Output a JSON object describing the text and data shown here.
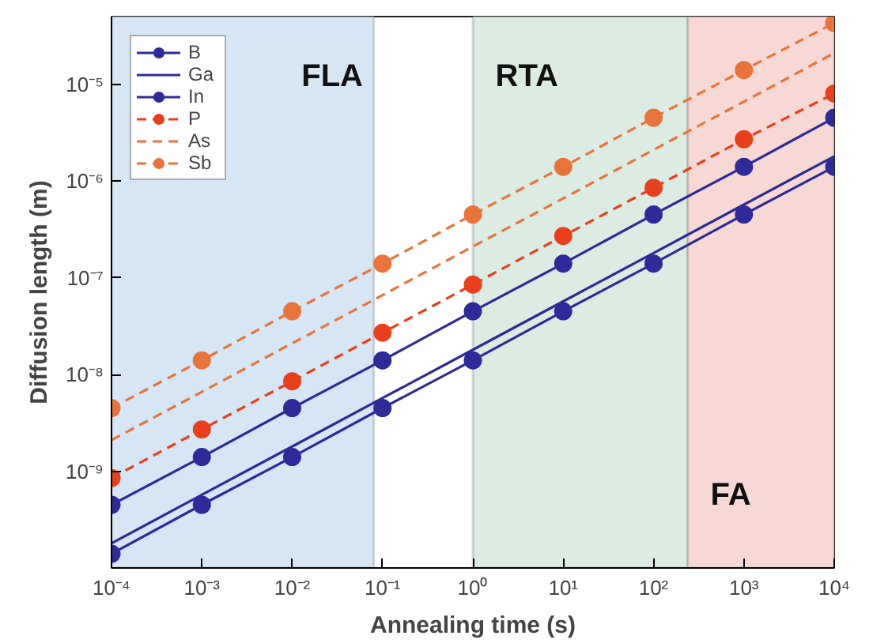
{
  "chart_data": {
    "type": "line",
    "xlabel": "Annealing time (s)",
    "ylabel": "Diffusion length (m)",
    "log": "xy",
    "grid": false,
    "legend": "top left",
    "x": [
      0.0001,
      0.001,
      0.01,
      0.1,
      1,
      10,
      100,
      1000,
      10000
    ],
    "xlim": [
      0.0001,
      10000
    ],
    "ylim": [
      1e-10,
      5e-05
    ],
    "xticks": [
      {
        "value": 0.0001,
        "label": "10⁻⁴"
      },
      {
        "value": 0.001,
        "label": "10⁻³"
      },
      {
        "value": 0.01,
        "label": "10⁻²"
      },
      {
        "value": 0.1,
        "label": "10⁻¹"
      },
      {
        "value": 1,
        "label": "10⁰"
      },
      {
        "value": 10,
        "label": "10¹"
      },
      {
        "value": 100,
        "label": "10²"
      },
      {
        "value": 1000,
        "label": "10³"
      },
      {
        "value": 10000,
        "label": "10⁴"
      }
    ],
    "yticks": [
      {
        "value": 1e-09,
        "label": "10⁻⁹"
      },
      {
        "value": 1e-08,
        "label": "10⁻⁸"
      },
      {
        "value": 1e-07,
        "label": "10⁻⁷"
      },
      {
        "value": 1e-06,
        "label": "10⁻⁶"
      },
      {
        "value": 1e-05,
        "label": "10⁻⁵"
      }
    ],
    "bands": [
      {
        "axis": "x",
        "from": 0.0001,
        "to": 0.08,
        "label": "FLA",
        "color": "#d6e6f5"
      },
      {
        "axis": "x",
        "from": 1,
        "to": 240,
        "label": "RTA",
        "color": "#dcece2"
      },
      {
        "axis": "x",
        "from": 240,
        "to": 10000,
        "label": "FA",
        "color": "#f8d8d4"
      }
    ],
    "series": [
      {
        "name": "B",
        "color": "#2e2a9a",
        "marker": "circle",
        "line_style": "solid",
        "values": [
          1.4e-10,
          4.5e-10,
          1.4e-09,
          4.5e-09,
          1.4e-08,
          4.5e-08,
          1.4e-07,
          4.5e-07,
          1.4e-06
        ]
      },
      {
        "name": "Ga",
        "color": "#2e2a9a",
        "marker": "none",
        "line_style": "solid",
        "values": [
          1.8e-10,
          5.7e-10,
          1.8e-09,
          5.7e-09,
          1.8e-08,
          5.7e-08,
          1.8e-07,
          5.7e-07,
          1.8e-06
        ]
      },
      {
        "name": "In",
        "color": "#2e2a9a",
        "marker": "circle",
        "line_style": "solid",
        "values": [
          4.5e-10,
          1.4e-09,
          4.5e-09,
          1.4e-08,
          4.5e-08,
          1.4e-07,
          4.5e-07,
          1.4e-06,
          4.5e-06
        ]
      },
      {
        "name": "P",
        "color": "#e8401c",
        "marker": "circle",
        "line_style": "dashed",
        "values": [
          8.5e-10,
          2.7e-09,
          8.5e-09,
          2.7e-08,
          8.5e-08,
          2.7e-07,
          8.5e-07,
          2.7e-06,
          8e-06
        ]
      },
      {
        "name": "As",
        "color": "#e8743c",
        "marker": "none",
        "line_style": "dashed",
        "values": [
          2.1e-09,
          6.6e-09,
          2.1e-08,
          6.6e-08,
          2.1e-07,
          6.6e-07,
          2.1e-06,
          6.6e-06,
          2.1e-05
        ]
      },
      {
        "name": "Sb",
        "color": "#e8743c",
        "marker": "circle",
        "line_style": "dashed",
        "values": [
          4.5e-09,
          1.4e-08,
          4.5e-08,
          1.4e-07,
          4.5e-07,
          1.4e-06,
          4.5e-06,
          1.4e-05,
          4.3e-05
        ]
      }
    ]
  }
}
